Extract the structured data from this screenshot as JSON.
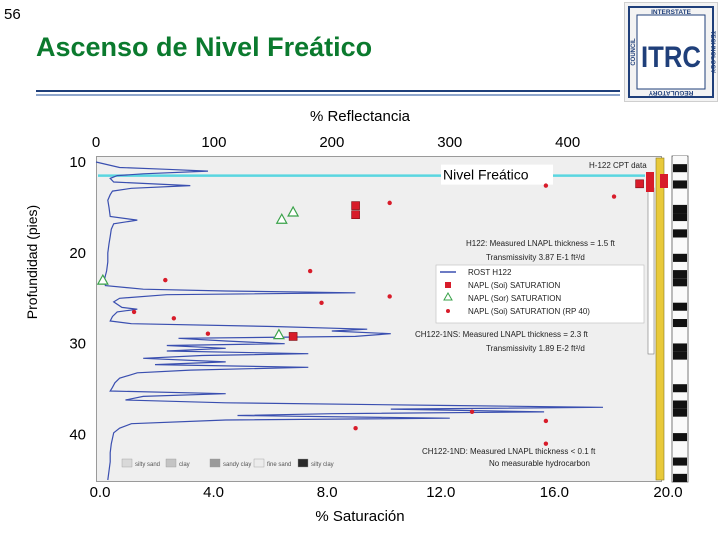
{
  "slide": {
    "number": "56",
    "title": "Ascenso de Nivel Freático"
  },
  "logo": {
    "text_big": "ITRC",
    "ring_words": [
      "INTERSTATE",
      "TECHNOLOGY",
      "REGULATORY",
      "COUNCIL"
    ]
  },
  "colors": {
    "title": "#0b7a2e",
    "water_table_line": "#5ad6e0",
    "rost_trace": "#3a4fb0",
    "napl_soi": "#d81c2a",
    "napl_sor": "#3aa24a"
  },
  "chart_data": {
    "type": "line",
    "top_axis": {
      "label": "% Reflectancia",
      "range": [
        0,
        480
      ],
      "tick_labels": [
        "0",
        "100",
        "200",
        "300",
        "400"
      ],
      "tick_values": [
        0,
        100,
        200,
        300,
        400
      ]
    },
    "bottom_axis": {
      "label": "% Saturación",
      "range": [
        0,
        20
      ],
      "tick_labels": [
        "0.0",
        "4.0",
        "8.0",
        "12.0",
        "16.0",
        "20.0"
      ],
      "tick_values": [
        0,
        4,
        8,
        12,
        16,
        20
      ]
    },
    "y_axis": {
      "label": "Profundidad (pies)",
      "range": [
        10,
        45
      ],
      "tick_labels": [
        "10",
        "20",
        "30",
        "40"
      ],
      "tick_values": [
        10,
        20,
        30,
        40
      ],
      "inverted": true
    },
    "water_table": {
      "label": "Nivel Freático",
      "depth": 11.5
    },
    "annotations": [
      {
        "id": "header",
        "text": "H-122 CPT data"
      },
      {
        "id": "h122a",
        "text": "H122:  Measured LNAPL thickness = 1.5 ft"
      },
      {
        "id": "h122b",
        "text": "Transmissivity 3.87 E-1 ft²/d"
      },
      {
        "id": "ns1",
        "text": "CH122-1NS:  Measured LNAPL thickness = 2.3 ft"
      },
      {
        "id": "ns2",
        "text": "Transmissivity 1.89 E-2 ft²/d"
      },
      {
        "id": "nd1",
        "text": "CH122-1ND:  Measured LNAPL thickness < 0.1 ft"
      },
      {
        "id": "nd2",
        "text": "No measurable hydrocarbon"
      }
    ],
    "legend": {
      "placement": "right",
      "items": [
        {
          "label": "ROST H122",
          "kind": "line",
          "color": "#3a4fb0"
        },
        {
          "label": "NAPL (Soi) SATURATION",
          "kind": "square",
          "color": "#d81c2a"
        },
        {
          "label": "NAPL (Sor) SATURATION",
          "kind": "triangle",
          "color": "#3aa24a"
        },
        {
          "label": "NAPL (Soi) SATURATION (RP 40)",
          "kind": "dot",
          "color": "#d81c2a"
        }
      ]
    },
    "soil_legend": [
      "silty sand",
      "clay",
      "sandy clay",
      "fine sand",
      "silty clay"
    ],
    "series": [
      {
        "name": "ROST H122",
        "axis": "reflectance",
        "points": [
          [
            0,
            10
          ],
          [
            20,
            10.6
          ],
          [
            60,
            10.8
          ],
          [
            95,
            11.0
          ],
          [
            40,
            11.3
          ],
          [
            18,
            11.5
          ],
          [
            12,
            11.8
          ],
          [
            15,
            12.2
          ],
          [
            80,
            12.6
          ],
          [
            30,
            12.9
          ],
          [
            14,
            13.2
          ],
          [
            12,
            13.6
          ],
          [
            10,
            14.2
          ],
          [
            11,
            15
          ],
          [
            12,
            16
          ],
          [
            35,
            16.4
          ],
          [
            15,
            16.8
          ],
          [
            13,
            17.4
          ],
          [
            12,
            18.2
          ],
          [
            11,
            19
          ],
          [
            10,
            20
          ],
          [
            10,
            21
          ],
          [
            9,
            22
          ],
          [
            8,
            22.5
          ],
          [
            7,
            23
          ],
          [
            8,
            23.6
          ],
          [
            40,
            24
          ],
          [
            110,
            24.2
          ],
          [
            220,
            24.4
          ],
          [
            60,
            24.6
          ],
          [
            20,
            25
          ],
          [
            15,
            25.4
          ],
          [
            22,
            26
          ],
          [
            35,
            26.2
          ],
          [
            18,
            26.5
          ],
          [
            14,
            27
          ],
          [
            12,
            27.5
          ],
          [
            30,
            27.8
          ],
          [
            150,
            28.1
          ],
          [
            230,
            28.4
          ],
          [
            200,
            28.6
          ],
          [
            250,
            28.9
          ],
          [
            220,
            29.2
          ],
          [
            70,
            29.4
          ],
          [
            110,
            29.7
          ],
          [
            160,
            30
          ],
          [
            60,
            30.2
          ],
          [
            110,
            30.5
          ],
          [
            60,
            30.8
          ],
          [
            180,
            31.1
          ],
          [
            90,
            31.3
          ],
          [
            40,
            31.6
          ],
          [
            110,
            32
          ],
          [
            50,
            32.3
          ],
          [
            180,
            32.6
          ],
          [
            80,
            32.9
          ],
          [
            35,
            33.2
          ],
          [
            20,
            33.8
          ],
          [
            16,
            34.3
          ],
          [
            14,
            34.8
          ],
          [
            12,
            35.2
          ],
          [
            110,
            35.5
          ],
          [
            40,
            35.8
          ],
          [
            25,
            36.2
          ],
          [
            110,
            36.5
          ],
          [
            300,
            36.8
          ],
          [
            430,
            37
          ],
          [
            250,
            37.2
          ],
          [
            380,
            37.5
          ],
          [
            200,
            37.7
          ],
          [
            120,
            37.9
          ],
          [
            300,
            38.2
          ],
          [
            110,
            38.4
          ],
          [
            30,
            38.8
          ],
          [
            20,
            39.3
          ],
          [
            15,
            39.8
          ],
          [
            14,
            40.4
          ],
          [
            13,
            41
          ],
          [
            12,
            42
          ],
          [
            12,
            43
          ],
          [
            11,
            44
          ],
          [
            10,
            45
          ]
        ]
      },
      {
        "name": "NAPL (Soi) SATURATION",
        "axis": "saturation",
        "marker": "square",
        "points": [
          [
            19.0,
            12.4
          ],
          [
            9.0,
            14.8
          ],
          [
            9.0,
            15.8
          ],
          [
            6.8,
            29.2
          ]
        ]
      },
      {
        "name": "NAPL (Sor) SATURATION",
        "axis": "saturation",
        "marker": "triangle",
        "points": [
          [
            6.8,
            15.5
          ],
          [
            6.4,
            16.3
          ],
          [
            0.1,
            23.0
          ],
          [
            6.3,
            29.0
          ]
        ]
      },
      {
        "name": "NAPL (Soi) SATURATION (RP 40)",
        "axis": "saturation",
        "marker": "dot",
        "points": [
          [
            15.7,
            12.6
          ],
          [
            18.1,
            13.8
          ],
          [
            10.2,
            14.5
          ],
          [
            2.3,
            23.0
          ],
          [
            7.4,
            22.0
          ],
          [
            7.8,
            25.5
          ],
          [
            10.2,
            24.8
          ],
          [
            1.2,
            26.5
          ],
          [
            2.6,
            27.2
          ],
          [
            3.8,
            28.9
          ],
          [
            13.1,
            37.5
          ],
          [
            15.7,
            38.5
          ],
          [
            9.0,
            39.3
          ],
          [
            15.7,
            41.0
          ]
        ]
      }
    ],
    "cpt_column": {
      "header": "H-122 CPT data",
      "soil_pattern": [
        "w",
        "k",
        "w",
        "k",
        "w",
        "w",
        "k",
        "k",
        "w",
        "k",
        "w",
        "w",
        "k",
        "w",
        "k",
        "k",
        "w",
        "w",
        "k",
        "w",
        "k",
        "w",
        "w",
        "k",
        "k",
        "w",
        "w",
        "w",
        "k",
        "w",
        "k",
        "k",
        "w",
        "w",
        "k",
        "w",
        "w",
        "k",
        "w",
        "k"
      ]
    }
  }
}
